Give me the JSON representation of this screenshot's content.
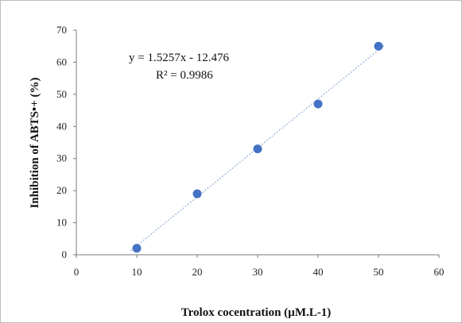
{
  "chart_data": {
    "type": "scatter",
    "x": [
      10,
      20,
      30,
      40,
      50
    ],
    "y": [
      2,
      19,
      33,
      47,
      65
    ],
    "xlabel": "Trolox cocentration (µM.L-1)",
    "ylabel": "Inhibition of ABTS•+ (%)",
    "xlim": [
      0,
      60
    ],
    "ylim": [
      0,
      70
    ],
    "xticks": [
      "0",
      "10",
      "20",
      "30",
      "40",
      "50",
      "60"
    ],
    "yticks": [
      "0",
      "10",
      "20",
      "30",
      "40",
      "50",
      "60",
      "70"
    ],
    "trendline": {
      "type": "linear",
      "slope": 1.5257,
      "intercept": -12.476,
      "equation": "y = 1.5257x - 12.476",
      "r2_label": "R² = 0.9986"
    },
    "marker_color": "#4472c4",
    "trendline_color": "#7f9fd0",
    "grid": false
  }
}
